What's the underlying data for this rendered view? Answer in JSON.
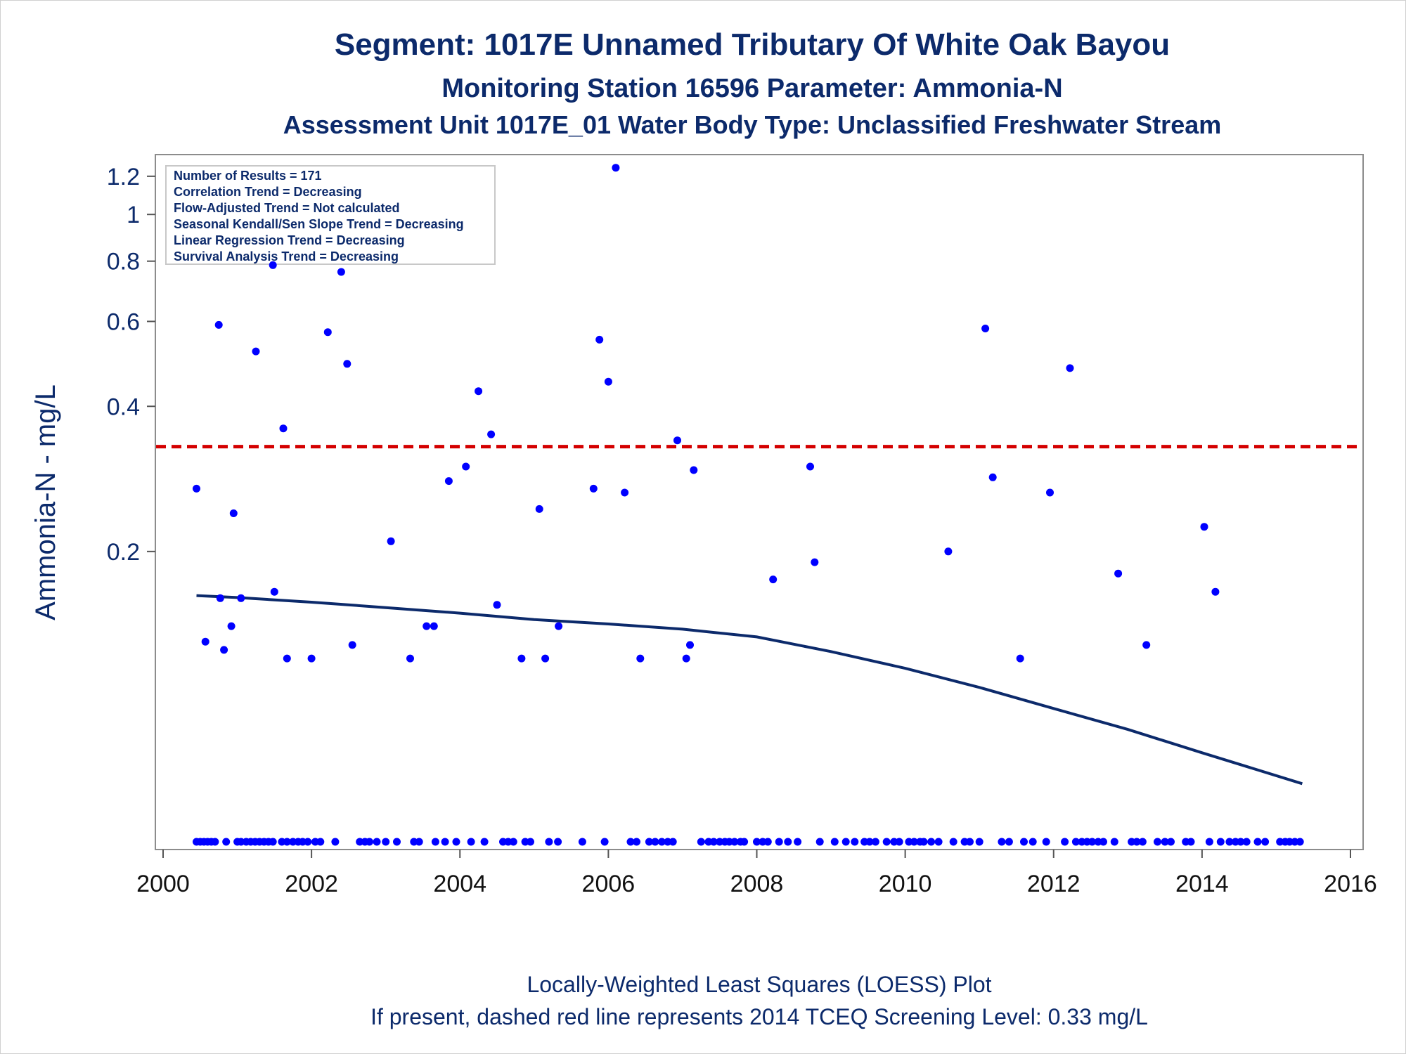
{
  "chart_data": {
    "type": "scatter",
    "title": "Segment: 1017E  Unnamed Tributary Of White Oak Bayou",
    "subtitle": "Monitoring Station 16596 Parameter: Ammonia-N",
    "subtitle2": "Assessment Unit 1017E_01   Water Body Type: Unclassified Freshwater Stream",
    "xlabel": "",
    "ylabel": "Ammonia-N - mg/L",
    "xlim": [
      2000,
      2016
    ],
    "ylim": [
      0.05,
      1.3
    ],
    "yscale": "log",
    "x_ticks": [
      "2000",
      "2002",
      "2004",
      "2006",
      "2008",
      "2010",
      "2012",
      "2014",
      "2016"
    ],
    "y_ticks": [
      "0.2",
      "0.4",
      "0.6",
      "0.8",
      "1",
      "1.2"
    ],
    "grid": false,
    "legend_box": {
      "placement": "top-left",
      "lines": [
        "Number of Results = 171",
        "Correlation Trend = Decreasing",
        "Flow-Adjusted Trend = Not calculated",
        "Seasonal Kendall/Sen Slope Trend = Decreasing",
        "Linear Regression Trend = Decreasing",
        "Survival Analysis Trend = Decreasing"
      ]
    },
    "screening_level": {
      "value": 0.33,
      "style": "dashed",
      "color": "#d40000"
    },
    "series": [
      {
        "kind": "points",
        "color": "#0000ff",
        "points": [
          [
            2000.45,
            0.27
          ],
          [
            2000.57,
            0.13
          ],
          [
            2000.75,
            0.59
          ],
          [
            2000.77,
            0.16
          ],
          [
            2000.82,
            0.125
          ],
          [
            2000.92,
            0.14
          ],
          [
            2000.95,
            0.24
          ],
          [
            2001.05,
            0.16
          ],
          [
            2001.25,
            0.52
          ],
          [
            2001.48,
            0.785
          ],
          [
            2001.5,
            0.165
          ],
          [
            2001.62,
            0.36
          ],
          [
            2001.67,
            0.12
          ],
          [
            2002.0,
            0.12
          ],
          [
            2002.22,
            0.57
          ],
          [
            2002.4,
            0.76
          ],
          [
            2002.48,
            0.49
          ],
          [
            2002.55,
            0.128
          ],
          [
            2003.07,
            0.21
          ],
          [
            2003.33,
            0.12
          ],
          [
            2003.55,
            0.14
          ],
          [
            2003.65,
            0.14
          ],
          [
            2003.85,
            0.28
          ],
          [
            2004.08,
            0.3
          ],
          [
            2004.25,
            0.43
          ],
          [
            2004.42,
            0.35
          ],
          [
            2004.5,
            0.155
          ],
          [
            2004.83,
            0.12
          ],
          [
            2005.07,
            0.245
          ],
          [
            2005.15,
            0.12
          ],
          [
            2005.33,
            0.14
          ],
          [
            2005.8,
            0.27
          ],
          [
            2005.88,
            0.55
          ],
          [
            2006.0,
            0.45
          ],
          [
            2006.1,
            1.25
          ],
          [
            2006.22,
            0.265
          ],
          [
            2006.43,
            0.12
          ],
          [
            2006.93,
            0.34
          ],
          [
            2007.05,
            0.12
          ],
          [
            2007.1,
            0.128
          ],
          [
            2007.15,
            0.295
          ],
          [
            2008.22,
            0.175
          ],
          [
            2008.72,
            0.3
          ],
          [
            2008.78,
            0.19
          ],
          [
            2010.58,
            0.2
          ],
          [
            2011.08,
            0.58
          ],
          [
            2011.18,
            0.285
          ],
          [
            2011.55,
            0.12
          ],
          [
            2011.95,
            0.265
          ],
          [
            2012.22,
            0.48
          ],
          [
            2012.87,
            0.18
          ],
          [
            2013.25,
            0.128
          ],
          [
            2014.03,
            0.225
          ],
          [
            2014.18,
            0.165
          ]
        ],
        "censored_x": [
          2000.45,
          2000.5,
          2000.55,
          2000.6,
          2000.65,
          2000.7,
          2000.85,
          2001.0,
          2001.05,
          2001.12,
          2001.18,
          2001.24,
          2001.3,
          2001.36,
          2001.42,
          2001.48,
          2001.6,
          2001.67,
          2001.75,
          2001.82,
          2001.88,
          2001.95,
          2002.05,
          2002.12,
          2002.32,
          2002.65,
          2002.72,
          2002.78,
          2002.88,
          2003.0,
          2003.15,
          2003.38,
          2003.45,
          2003.67,
          2003.8,
          2003.95,
          2004.15,
          2004.33,
          2004.58,
          2004.65,
          2004.72,
          2004.88,
          2004.95,
          2005.2,
          2005.32,
          2005.65,
          2005.95,
          2006.3,
          2006.38,
          2006.55,
          2006.63,
          2006.72,
          2006.8,
          2006.87,
          2007.25,
          2007.35,
          2007.42,
          2007.5,
          2007.57,
          2007.63,
          2007.7,
          2007.78,
          2007.83,
          2008.0,
          2008.08,
          2008.15,
          2008.3,
          2008.42,
          2008.55,
          2008.85,
          2009.05,
          2009.2,
          2009.32,
          2009.45,
          2009.52,
          2009.6,
          2009.75,
          2009.85,
          2009.92,
          2010.05,
          2010.12,
          2010.2,
          2010.25,
          2010.35,
          2010.45,
          2010.65,
          2010.8,
          2010.87,
          2011.0,
          2011.3,
          2011.4,
          2011.6,
          2011.72,
          2011.9,
          2012.15,
          2012.3,
          2012.38,
          2012.45,
          2012.52,
          2012.6,
          2012.67,
          2012.82,
          2013.05,
          2013.12,
          2013.2,
          2013.4,
          2013.5,
          2013.58,
          2013.78,
          2013.85,
          2014.1,
          2014.25,
          2014.37,
          2014.45,
          2014.52,
          2014.6,
          2014.75,
          2014.85,
          2015.05,
          2015.12,
          2015.18,
          2015.25,
          2015.32
        ]
      },
      {
        "kind": "line",
        "color": "#0c2a6b",
        "points": [
          [
            2000.45,
            0.162
          ],
          [
            2001.0,
            0.1605
          ],
          [
            2002.0,
            0.157
          ],
          [
            2003.0,
            0.153
          ],
          [
            2004.0,
            0.149
          ],
          [
            2005.0,
            0.1445
          ],
          [
            2006.0,
            0.1415
          ],
          [
            2007.0,
            0.138
          ],
          [
            2008.0,
            0.133
          ],
          [
            2009.0,
            0.124
          ],
          [
            2010.0,
            0.1145
          ],
          [
            2011.0,
            0.1045
          ],
          [
            2012.0,
            0.0945
          ],
          [
            2013.0,
            0.0855
          ],
          [
            2014.0,
            0.0765
          ],
          [
            2015.35,
            0.066
          ]
        ]
      }
    ],
    "footer": [
      "Locally-Weighted Least Squares (LOESS) Plot",
      "If present, dashed red line represents 2014 TCEQ Screening Level: 0.33 mg/L"
    ]
  }
}
